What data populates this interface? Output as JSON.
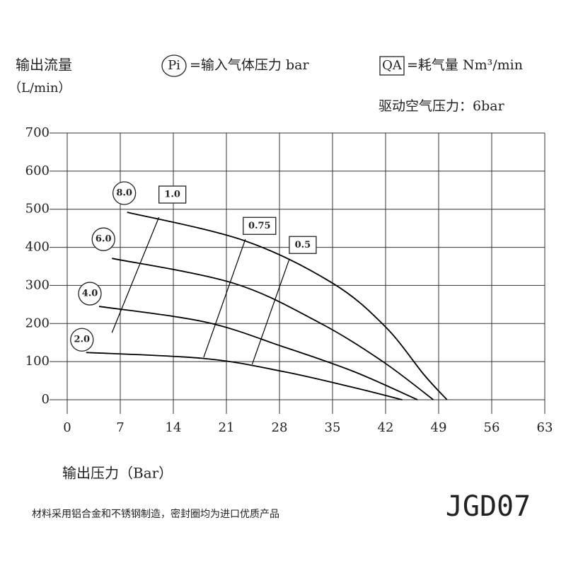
{
  "chart_data": {
    "type": "line",
    "y_label": "输出流量",
    "y_unit": "（L/min）",
    "legend_pi_symbol": "Pi",
    "legend_pi_text": "=输入气体压力 bar",
    "legend_qa_symbol": "QA",
    "legend_qa_text": "=耗气量 Nm³/min",
    "drive_pressure": "驱动空气压力：6bar",
    "x_label": "输出压力（Bar）",
    "footnote": "材料采用铝合金和不锈钢制造，密封圈均为进口优质产品",
    "model": "JGD07",
    "xlim": [
      0,
      63
    ],
    "xticks": [
      0,
      7,
      14,
      21,
      28,
      35,
      42,
      49,
      56,
      63
    ],
    "ylim": [
      0,
      700
    ],
    "yticks": [
      0,
      100,
      200,
      300,
      400,
      500,
      600,
      700
    ],
    "grid": true,
    "color": "#000000",
    "series": [
      {
        "name": "8.0",
        "x": [
          7.9,
          23.3,
          35,
          42,
          47.1,
          50.1
        ],
        "values": [
          492,
          418,
          306,
          191,
          65,
          0
        ]
      },
      {
        "name": "6.0",
        "x": [
          5.9,
          21.9,
          33.1,
          41.5,
          48.3
        ],
        "values": [
          371,
          306,
          204,
          102,
          0
        ]
      },
      {
        "name": "4.0",
        "x": [
          4.2,
          18.2,
          28.5,
          37.8,
          46.2
        ],
        "values": [
          245,
          204,
          139,
          74,
          0
        ]
      },
      {
        "name": "2.0",
        "x": [
          2.5,
          18.2,
          28.5,
          37.8,
          44.2
        ],
        "values": [
          124,
          108,
          74,
          32,
          0
        ]
      }
    ],
    "consumption_lines": [
      {
        "name": "1.0",
        "x": [
          5.9,
          12.1
        ],
        "values": [
          176,
          479
        ]
      },
      {
        "name": "0.75",
        "x": [
          18.0,
          23.5
        ],
        "values": [
          111,
          421
        ]
      },
      {
        "name": "0.5",
        "x": [
          24.4,
          29.3
        ],
        "values": [
          93,
          369
        ]
      }
    ]
  }
}
